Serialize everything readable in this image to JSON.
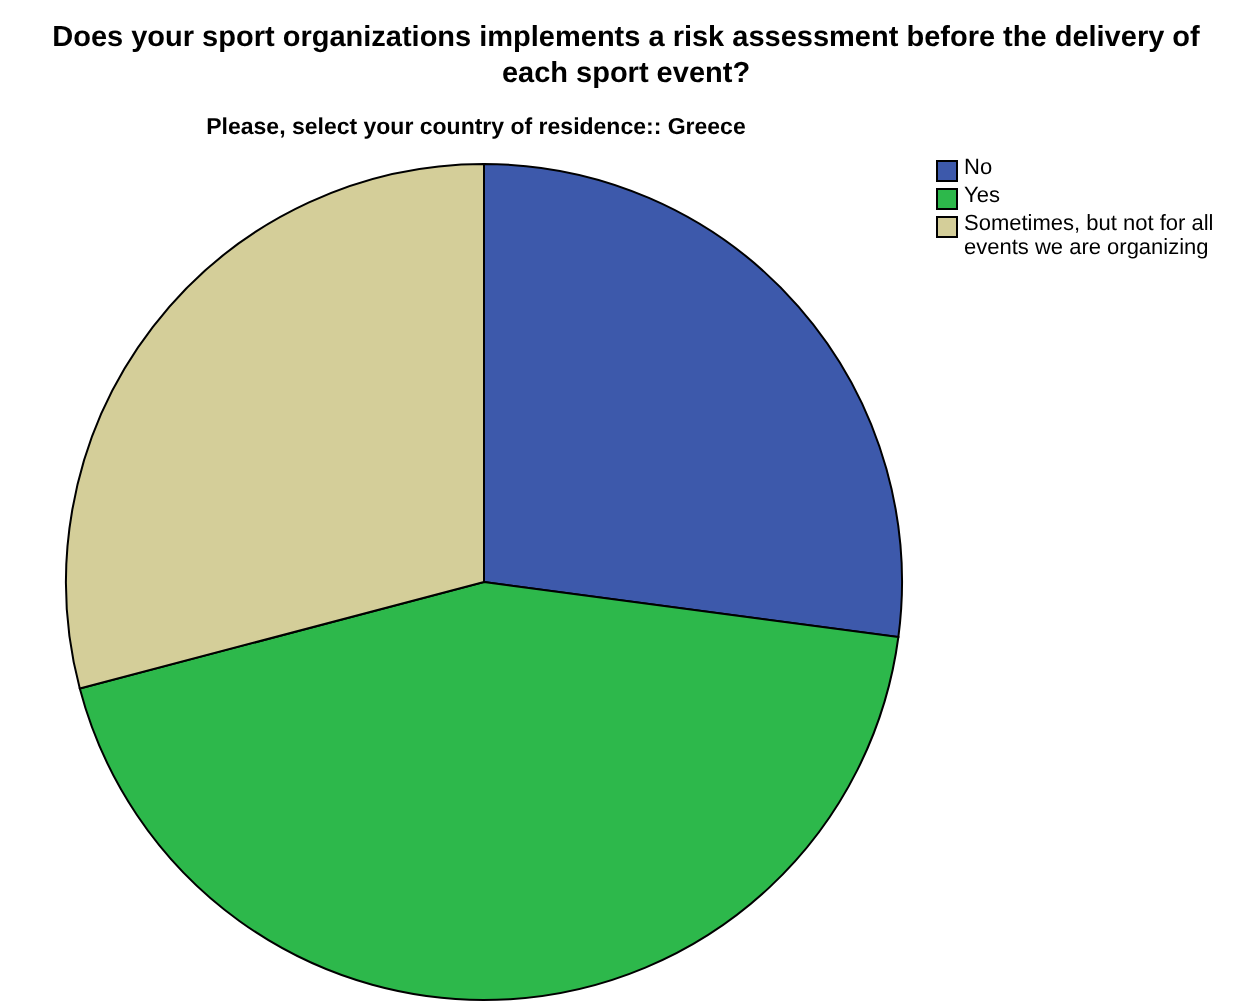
{
  "chart_data": {
    "type": "pie",
    "title": "Does your sport organizations implements a risk assessment before the delivery of each sport event?",
    "subtitle": "Please, select your country of residence:: Greece",
    "categories": [
      "No",
      "Yes",
      "Sometimes, but not for all events we are organizing"
    ],
    "values": [
      27.1,
      43.8,
      29.1
    ],
    "colors": [
      "#3d59ab",
      "#2db84b",
      "#d4ce99"
    ],
    "legend": "top right"
  }
}
